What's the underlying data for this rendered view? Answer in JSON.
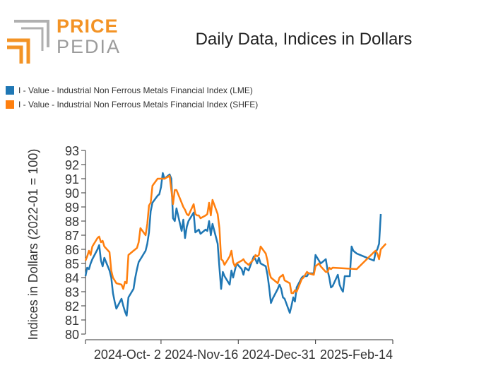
{
  "brand": {
    "line1": "PRICE",
    "line2": "PEDIA",
    "orange": "#f39325",
    "gray": "#9b9b9b"
  },
  "chart_data": {
    "type": "line",
    "title": "Daily Data, Indices in Dollars",
    "xlabel": "",
    "ylabel": "Indices in Dollars (2022-01 = 100)",
    "ylim": [
      80,
      93
    ],
    "yticks": [
      80,
      81,
      82,
      83,
      84,
      85,
      86,
      87,
      88,
      89,
      90,
      91,
      92,
      93
    ],
    "xlim": [
      "2024-08-19",
      "2025-02-14"
    ],
    "xtick_labels": [
      "2024-Oct- 2",
      "2024-Nov-16",
      "2024-Dec-31",
      "2025-Feb-14"
    ],
    "xtick_dates": [
      "2024-10-02",
      "2024-11-16",
      "2024-12-31",
      "2025-02-14"
    ],
    "legend_position": "top-left",
    "grid": false,
    "series": [
      {
        "name": "I - Value - Industrial Non Ferrous Metals Financial Index (LME)",
        "color": "#1f77b4",
        "points": [
          [
            "2024-08-19",
            84.1
          ],
          [
            "2024-08-20",
            84.7
          ],
          [
            "2024-08-21",
            84.6
          ],
          [
            "2024-08-22",
            85.0
          ],
          [
            "2024-08-23",
            85.3
          ],
          [
            "2024-08-26",
            86.0
          ],
          [
            "2024-08-27",
            86.3
          ],
          [
            "2024-08-28",
            85.2
          ],
          [
            "2024-08-29",
            84.8
          ],
          [
            "2024-08-30",
            85.4
          ],
          [
            "2024-09-02",
            84.5
          ],
          [
            "2024-09-03",
            84.0
          ],
          [
            "2024-09-04",
            82.9
          ],
          [
            "2024-09-05",
            82.3
          ],
          [
            "2024-09-06",
            81.8
          ],
          [
            "2024-09-09",
            82.5
          ],
          [
            "2024-09-10",
            82.0
          ],
          [
            "2024-09-11",
            81.6
          ],
          [
            "2024-09-12",
            81.3
          ],
          [
            "2024-09-13",
            82.6
          ],
          [
            "2024-09-16",
            83.2
          ],
          [
            "2024-09-17",
            84.0
          ],
          [
            "2024-09-18",
            84.6
          ],
          [
            "2024-09-19",
            85.1
          ],
          [
            "2024-09-20",
            85.3
          ],
          [
            "2024-09-23",
            85.9
          ],
          [
            "2024-09-24",
            86.4
          ],
          [
            "2024-09-25",
            87.2
          ],
          [
            "2024-09-26",
            88.7
          ],
          [
            "2024-09-27",
            89.3
          ],
          [
            "2024-09-30",
            89.8
          ],
          [
            "2024-10-01",
            89.9
          ],
          [
            "2024-10-02",
            90.4
          ],
          [
            "2024-10-03",
            91.4
          ],
          [
            "2024-10-04",
            91.0
          ],
          [
            "2024-10-07",
            91.3
          ],
          [
            "2024-10-08",
            91.0
          ],
          [
            "2024-10-09",
            88.2
          ],
          [
            "2024-10-10",
            88.0
          ],
          [
            "2024-10-11",
            88.9
          ],
          [
            "2024-10-14",
            87.3
          ],
          [
            "2024-10-15",
            88.1
          ],
          [
            "2024-10-16",
            86.8
          ],
          [
            "2024-10-17",
            87.6
          ],
          [
            "2024-10-18",
            88.0
          ],
          [
            "2024-10-21",
            88.6
          ],
          [
            "2024-10-22",
            87.2
          ],
          [
            "2024-10-23",
            87.3
          ],
          [
            "2024-10-24",
            87.4
          ],
          [
            "2024-10-25",
            87.1
          ],
          [
            "2024-10-28",
            87.4
          ],
          [
            "2024-10-29",
            87.3
          ],
          [
            "2024-10-30",
            88.0
          ],
          [
            "2024-10-31",
            87.0
          ],
          [
            "2024-11-01",
            87.8
          ],
          [
            "2024-11-04",
            86.4
          ],
          [
            "2024-11-05",
            84.7
          ],
          [
            "2024-11-06",
            83.2
          ],
          [
            "2024-11-07",
            84.4
          ],
          [
            "2024-11-08",
            84.1
          ],
          [
            "2024-11-11",
            83.5
          ],
          [
            "2024-11-12",
            84.5
          ],
          [
            "2024-11-13",
            84.0
          ],
          [
            "2024-11-14",
            84.5
          ],
          [
            "2024-11-15",
            85.0
          ],
          [
            "2024-11-18",
            84.6
          ],
          [
            "2024-11-19",
            84.2
          ],
          [
            "2024-11-20",
            84.7
          ],
          [
            "2024-11-22",
            84.5
          ],
          [
            "2024-11-25",
            85.5
          ],
          [
            "2024-11-26",
            85.3
          ],
          [
            "2024-11-27",
            85.0
          ],
          [
            "2024-11-28",
            85.4
          ],
          [
            "2024-11-29",
            85.0
          ],
          [
            "2024-12-02",
            84.8
          ],
          [
            "2024-12-03",
            84.2
          ],
          [
            "2024-12-04",
            83.3
          ],
          [
            "2024-12-05",
            82.2
          ],
          [
            "2024-12-06",
            82.5
          ],
          [
            "2024-12-09",
            83.2
          ],
          [
            "2024-12-10",
            83.5
          ],
          [
            "2024-12-11",
            83.2
          ],
          [
            "2024-12-12",
            82.6
          ],
          [
            "2024-12-13",
            82.5
          ],
          [
            "2024-12-16",
            81.5
          ],
          [
            "2024-12-17",
            82.0
          ],
          [
            "2024-12-18",
            82.6
          ],
          [
            "2024-12-19",
            82.3
          ],
          [
            "2024-12-20",
            83.3
          ],
          [
            "2024-12-23",
            84.0
          ],
          [
            "2024-12-24",
            84.1
          ],
          [
            "2024-12-26",
            84.1
          ],
          [
            "2024-12-27",
            84.3
          ],
          [
            "2024-12-30",
            84.3
          ],
          [
            "2024-12-31",
            85.6
          ],
          [
            "2025-01-02",
            85.2
          ],
          [
            "2025-01-03",
            85.0
          ],
          [
            "2025-01-06",
            85.3
          ],
          [
            "2025-01-07",
            84.5
          ],
          [
            "2025-01-08",
            84.0
          ],
          [
            "2025-01-09",
            83.3
          ],
          [
            "2025-01-10",
            83.4
          ],
          [
            "2025-01-13",
            84.2
          ],
          [
            "2025-01-14",
            83.5
          ],
          [
            "2025-01-15",
            83.2
          ],
          [
            "2025-01-16",
            83.0
          ],
          [
            "2025-01-17",
            84.1
          ],
          [
            "2025-01-20",
            84.1
          ],
          [
            "2025-01-21",
            86.2
          ],
          [
            "2025-01-22",
            85.9
          ],
          [
            "2025-01-23",
            85.8
          ],
          [
            "2025-01-24",
            85.7
          ],
          [
            "2025-02-03",
            85.2
          ],
          [
            "2025-02-04",
            85.8
          ],
          [
            "2025-02-05",
            86.0
          ],
          [
            "2025-02-06",
            86.4
          ],
          [
            "2025-02-07",
            88.5
          ]
        ]
      },
      {
        "name": "I - Value - Industrial Non Ferrous Metals Financial Index (SHFE)",
        "color": "#ff7f0e",
        "points": [
          [
            "2024-08-19",
            85.2
          ],
          [
            "2024-08-20",
            85.5
          ],
          [
            "2024-08-21",
            85.9
          ],
          [
            "2024-08-22",
            85.6
          ],
          [
            "2024-08-23",
            86.2
          ],
          [
            "2024-08-26",
            86.8
          ],
          [
            "2024-08-27",
            86.9
          ],
          [
            "2024-08-28",
            86.5
          ],
          [
            "2024-08-29",
            86.6
          ],
          [
            "2024-08-30",
            86.2
          ],
          [
            "2024-09-02",
            85.8
          ],
          [
            "2024-09-03",
            84.5
          ],
          [
            "2024-09-04",
            84.0
          ],
          [
            "2024-09-05",
            83.8
          ],
          [
            "2024-09-06",
            83.6
          ],
          [
            "2024-09-09",
            83.5
          ],
          [
            "2024-09-10",
            83.2
          ],
          [
            "2024-09-11",
            83.7
          ],
          [
            "2024-09-12",
            83.6
          ],
          [
            "2024-09-13",
            85.6
          ],
          [
            "2024-09-16",
            85.9
          ],
          [
            "2024-09-17",
            86.0
          ],
          [
            "2024-09-18",
            86.1
          ],
          [
            "2024-09-19",
            86.5
          ],
          [
            "2024-09-20",
            87.5
          ],
          [
            "2024-09-23",
            87.0
          ],
          [
            "2024-09-24",
            87.8
          ],
          [
            "2024-09-25",
            89.1
          ],
          [
            "2024-09-26",
            89.3
          ],
          [
            "2024-09-27",
            90.5
          ],
          [
            "2024-09-30",
            91.0
          ],
          [
            "2024-10-01",
            91.0
          ],
          [
            "2024-10-02",
            91.0
          ],
          [
            "2024-10-03",
            91.0
          ],
          [
            "2024-10-04",
            91.0
          ],
          [
            "2024-10-07",
            91.2
          ],
          [
            "2024-10-08",
            90.2
          ],
          [
            "2024-10-09",
            89.2
          ],
          [
            "2024-10-10",
            90.2
          ],
          [
            "2024-10-11",
            90.2
          ],
          [
            "2024-10-14",
            89.3
          ],
          [
            "2024-10-15",
            89.0
          ],
          [
            "2024-10-16",
            88.8
          ],
          [
            "2024-10-17",
            88.5
          ],
          [
            "2024-10-18",
            88.4
          ],
          [
            "2024-10-21",
            89.2
          ],
          [
            "2024-10-22",
            88.5
          ],
          [
            "2024-10-23",
            88.4
          ],
          [
            "2024-10-24",
            88.4
          ],
          [
            "2024-10-25",
            88.2
          ],
          [
            "2024-10-28",
            88.4
          ],
          [
            "2024-10-29",
            88.5
          ],
          [
            "2024-10-30",
            89.3
          ],
          [
            "2024-10-31",
            88.4
          ],
          [
            "2024-11-01",
            89.5
          ],
          [
            "2024-11-04",
            88.5
          ],
          [
            "2024-11-05",
            87.5
          ],
          [
            "2024-11-06",
            85.3
          ],
          [
            "2024-11-07",
            85.2
          ],
          [
            "2024-11-08",
            84.9
          ],
          [
            "2024-11-11",
            85.5
          ],
          [
            "2024-11-12",
            85.9
          ],
          [
            "2024-11-13",
            85.1
          ],
          [
            "2024-11-14",
            84.8
          ],
          [
            "2024-11-15",
            85.0
          ],
          [
            "2024-11-18",
            85.2
          ],
          [
            "2024-11-19",
            85.3
          ],
          [
            "2024-11-20",
            85.1
          ],
          [
            "2024-11-22",
            84.9
          ],
          [
            "2024-11-25",
            85.3
          ],
          [
            "2024-11-26",
            85.6
          ],
          [
            "2024-11-27",
            85.5
          ],
          [
            "2024-11-28",
            85.6
          ],
          [
            "2024-11-29",
            86.2
          ],
          [
            "2024-12-02",
            85.7
          ],
          [
            "2024-12-03",
            85.2
          ],
          [
            "2024-12-04",
            84.4
          ],
          [
            "2024-12-05",
            84.0
          ],
          [
            "2024-12-06",
            83.9
          ],
          [
            "2024-12-09",
            83.6
          ],
          [
            "2024-12-10",
            84.0
          ],
          [
            "2024-12-11",
            84.1
          ],
          [
            "2024-12-12",
            84.2
          ],
          [
            "2024-12-13",
            83.8
          ],
          [
            "2024-12-16",
            83.6
          ],
          [
            "2024-12-17",
            82.9
          ],
          [
            "2024-12-18",
            82.9
          ],
          [
            "2024-12-19",
            83.1
          ],
          [
            "2024-12-20",
            83.0
          ],
          [
            "2024-12-23",
            83.9
          ],
          [
            "2024-12-24",
            84.0
          ],
          [
            "2024-12-26",
            84.4
          ],
          [
            "2024-12-27",
            84.3
          ],
          [
            "2024-12-30",
            84.2
          ],
          [
            "2024-12-31",
            84.8
          ],
          [
            "2025-01-02",
            85.0
          ],
          [
            "2025-01-03",
            84.8
          ],
          [
            "2025-01-06",
            84.4
          ],
          [
            "2025-01-07",
            84.4
          ],
          [
            "2025-01-08",
            84.7
          ],
          [
            "2025-01-09",
            84.6
          ],
          [
            "2025-01-10",
            84.7
          ],
          [
            "2025-01-24",
            84.6
          ],
          [
            "2025-02-03",
            85.8
          ],
          [
            "2025-02-04",
            85.9
          ],
          [
            "2025-02-05",
            85.7
          ],
          [
            "2025-02-06",
            85.3
          ],
          [
            "2025-02-07",
            86.0
          ],
          [
            "2025-02-10",
            86.4
          ]
        ]
      }
    ]
  }
}
